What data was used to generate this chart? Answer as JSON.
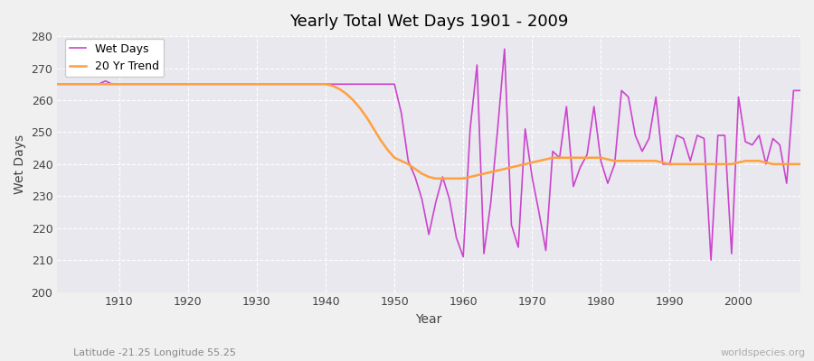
{
  "title": "Yearly Total Wet Days 1901 - 2009",
  "xlabel": "Year",
  "ylabel": "Wet Days",
  "subtitle": "Latitude -21.25 Longitude 55.25",
  "watermark": "worldspecies.org",
  "ylim": [
    200,
    280
  ],
  "xlim": [
    1901,
    2009
  ],
  "yticks": [
    200,
    210,
    220,
    230,
    240,
    250,
    260,
    270,
    280
  ],
  "xticks": [
    1910,
    1920,
    1930,
    1940,
    1950,
    1960,
    1970,
    1980,
    1990,
    2000
  ],
  "wet_days_color": "#CC44CC",
  "trend_color": "#FFA040",
  "bg_color": "#F0F0F0",
  "plot_bg_color": "#E8E8EE",
  "grid_color": "#FFFFFF",
  "wet_days": {
    "1901": 265,
    "1902": 265,
    "1903": 265,
    "1904": 265,
    "1905": 265,
    "1906": 265,
    "1907": 265,
    "1908": 266,
    "1909": 265,
    "1910": 265,
    "1911": 265,
    "1912": 265,
    "1913": 265,
    "1914": 265,
    "1915": 265,
    "1916": 265,
    "1917": 265,
    "1918": 265,
    "1919": 265,
    "1920": 265,
    "1921": 265,
    "1922": 265,
    "1923": 265,
    "1924": 265,
    "1925": 265,
    "1926": 265,
    "1927": 265,
    "1928": 265,
    "1929": 265,
    "1930": 265,
    "1931": 265,
    "1932": 265,
    "1933": 265,
    "1934": 265,
    "1935": 265,
    "1936": 265,
    "1937": 265,
    "1938": 265,
    "1939": 265,
    "1940": 265,
    "1941": 265,
    "1942": 265,
    "1943": 265,
    "1944": 265,
    "1945": 265,
    "1946": 265,
    "1947": 265,
    "1948": 265,
    "1949": 265,
    "1950": 265,
    "1951": 256,
    "1952": 241,
    "1953": 236,
    "1954": 229,
    "1955": 218,
    "1956": 228,
    "1957": 236,
    "1958": 229,
    "1959": 217,
    "1960": 211,
    "1961": 251,
    "1962": 271,
    "1963": 212,
    "1964": 228,
    "1965": 251,
    "1966": 276,
    "1967": 221,
    "1968": 214,
    "1969": 251,
    "1970": 236,
    "1971": 225,
    "1972": 213,
    "1973": 244,
    "1974": 242,
    "1975": 258,
    "1976": 233,
    "1977": 239,
    "1978": 243,
    "1979": 258,
    "1980": 241,
    "1981": 234,
    "1982": 240,
    "1983": 263,
    "1984": 261,
    "1985": 249,
    "1986": 244,
    "1987": 248,
    "1988": 261,
    "1989": 240,
    "1990": 240,
    "1991": 249,
    "1992": 248,
    "1993": 241,
    "1994": 249,
    "1995": 248,
    "1996": 210,
    "1997": 249,
    "1998": 249,
    "1999": 212,
    "2000": 261,
    "2001": 247,
    "2002": 246,
    "2003": 249,
    "2004": 240,
    "2005": 248,
    "2006": 246,
    "2007": 234,
    "2008": 263,
    "2009": 263
  },
  "trend": {
    "1901": 265.0,
    "1902": 265.0,
    "1903": 265.0,
    "1904": 265.0,
    "1905": 265.0,
    "1906": 265.0,
    "1907": 265.0,
    "1908": 265.0,
    "1909": 265.0,
    "1910": 265.0,
    "1911": 265.0,
    "1912": 265.0,
    "1913": 265.0,
    "1914": 265.0,
    "1915": 265.0,
    "1916": 265.0,
    "1917": 265.0,
    "1918": 265.0,
    "1919": 265.0,
    "1920": 265.0,
    "1921": 265.0,
    "1922": 265.0,
    "1923": 265.0,
    "1924": 265.0,
    "1925": 265.0,
    "1926": 265.0,
    "1927": 265.0,
    "1928": 265.0,
    "1929": 265.0,
    "1930": 265.0,
    "1931": 265.0,
    "1932": 265.0,
    "1933": 265.0,
    "1934": 265.0,
    "1935": 265.0,
    "1936": 265.0,
    "1937": 265.0,
    "1938": 265.0,
    "1939": 265.0,
    "1940": 265.0,
    "1941": 264.5,
    "1942": 263.5,
    "1943": 262.0,
    "1944": 260.0,
    "1945": 257.5,
    "1946": 254.5,
    "1947": 251.0,
    "1948": 247.5,
    "1949": 244.5,
    "1950": 242.0,
    "1951": 241.0,
    "1952": 240.0,
    "1953": 238.5,
    "1954": 237.0,
    "1955": 236.0,
    "1956": 235.5,
    "1957": 235.5,
    "1958": 235.5,
    "1959": 235.5,
    "1960": 235.5,
    "1961": 236.0,
    "1962": 236.5,
    "1963": 237.0,
    "1964": 237.5,
    "1965": 238.0,
    "1966": 238.5,
    "1967": 239.0,
    "1968": 239.5,
    "1969": 240.0,
    "1970": 240.5,
    "1971": 241.0,
    "1972": 241.5,
    "1973": 242.0,
    "1974": 242.0,
    "1975": 242.0,
    "1976": 242.0,
    "1977": 242.0,
    "1978": 242.0,
    "1979": 242.0,
    "1980": 242.0,
    "1981": 241.5,
    "1982": 241.0,
    "1983": 241.0,
    "1984": 241.0,
    "1985": 241.0,
    "1986": 241.0,
    "1987": 241.0,
    "1988": 241.0,
    "1989": 240.5,
    "1990": 240.0,
    "1991": 240.0,
    "1992": 240.0,
    "1993": 240.0,
    "1994": 240.0,
    "1995": 240.0,
    "1996": 240.0,
    "1997": 240.0,
    "1998": 240.0,
    "1999": 240.0,
    "2000": 240.5,
    "2001": 241.0,
    "2002": 241.0,
    "2003": 241.0,
    "2004": 240.5,
    "2005": 240.0,
    "2006": 240.0,
    "2007": 240.0,
    "2008": 240.0,
    "2009": 240.0
  }
}
